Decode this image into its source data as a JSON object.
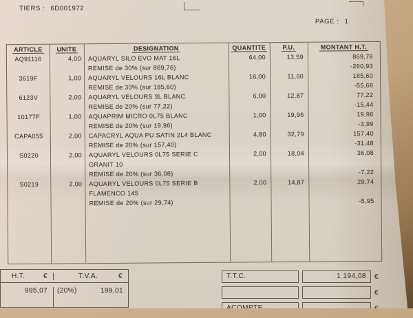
{
  "meta": {
    "tiers_label": "TIERS :",
    "tiers_value": "6D001972",
    "page_label": "PAGE :",
    "page_value": "1"
  },
  "table": {
    "headers": {
      "article": "ARTICLE",
      "unite": "UNITE",
      "designation": "DESIGNATION",
      "quantite": "QUANTITE",
      "pu": "P.U.",
      "montant": "MONTANT H.T."
    },
    "rows": [
      {
        "article": "AQ91116",
        "unite": "4,00",
        "designation": "AQUARYL SILO EVO MAT 16L",
        "quantite": "64,00",
        "pu": "13,59",
        "montant": "869,76"
      },
      {
        "article": "",
        "unite": "",
        "designation": "REMISE de 30% (sur 869,76)",
        "quantite": "",
        "pu": "",
        "montant": "-260,93"
      },
      {
        "article": "3619F",
        "unite": "1,00",
        "designation": "AQUARYL VELOURS 16L BLANC",
        "quantite": "16,00",
        "pu": "11,60",
        "montant": "185,60"
      },
      {
        "article": "",
        "unite": "",
        "designation": "REMISE de 30% (sur 185,60)",
        "quantite": "",
        "pu": "",
        "montant": "-55,68"
      },
      {
        "article": "6123V",
        "unite": "2,00",
        "designation": "AQUARYL VELOURS 3L BLANC",
        "quantite": "6,00",
        "pu": "12,87",
        "montant": "77,22"
      },
      {
        "article": "",
        "unite": "",
        "designation": "REMISE de 20% (sur 77,22)",
        "quantite": "",
        "pu": "",
        "montant": "-15,44"
      },
      {
        "article": "10177F",
        "unite": "1,00",
        "designation": "AQUAPRIM MICRO  0L75 BLANC",
        "quantite": "1,00",
        "pu": "19,96",
        "montant": "19,96"
      },
      {
        "article": "",
        "unite": "",
        "designation": "REMISE de 20% (sur 19,96)",
        "quantite": "",
        "pu": "",
        "montant": "-3,99"
      },
      {
        "article": "CAPA055",
        "unite": "2,00",
        "designation": "CAPACRYL AQUA PU SATIN  2L4 BLANC",
        "quantite": "4,80",
        "pu": "32,79",
        "montant": "157,40"
      },
      {
        "article": "",
        "unite": "",
        "designation": "REMISE de 20% (sur 157,40)",
        "quantite": "",
        "pu": "",
        "montant": "-31,48"
      },
      {
        "article": "S0220",
        "unite": "2,00",
        "designation": "AQUARYL VELOURS  0L75 SERIE C",
        "quantite": "2,00",
        "pu": "18,04",
        "montant": "36,08"
      },
      {
        "article": "",
        "unite": "",
        "designation": "GRANIT 10",
        "quantite": "",
        "pu": "",
        "montant": ""
      },
      {
        "article": "",
        "unite": "",
        "designation": "REMISE de 20% (sur 36,08)",
        "quantite": "",
        "pu": "",
        "montant": "-7,22"
      },
      {
        "article": "S0219",
        "unite": "2,00",
        "designation": "AQUARYL VELOURS  0L75 SERIE B",
        "quantite": "2,00",
        "pu": "14,87",
        "montant": "29,74"
      },
      {
        "article": "",
        "unite": "",
        "designation": "FLAMENCO 145",
        "quantite": "",
        "pu": "",
        "montant": ""
      },
      {
        "article": "",
        "unite": "",
        "designation": "REMISE de 20% (sur 29,74)",
        "quantite": "",
        "pu": "",
        "montant": "-5,95"
      }
    ]
  },
  "totals": {
    "currency": "€",
    "ht_label": "H.T.",
    "ht_value": "995,07",
    "tva_label": "T.V.A.",
    "tva_rate": "(20%)",
    "tva_value": "199,01",
    "ttc_label": "T.T.C.",
    "ttc_value": "1 194,08",
    "acompte_label": "ACOMPTE"
  },
  "colors": {
    "paper": "#d9d2c7",
    "background": "#c2a37e",
    "ink": "#413c36",
    "line": "#6f6255"
  }
}
